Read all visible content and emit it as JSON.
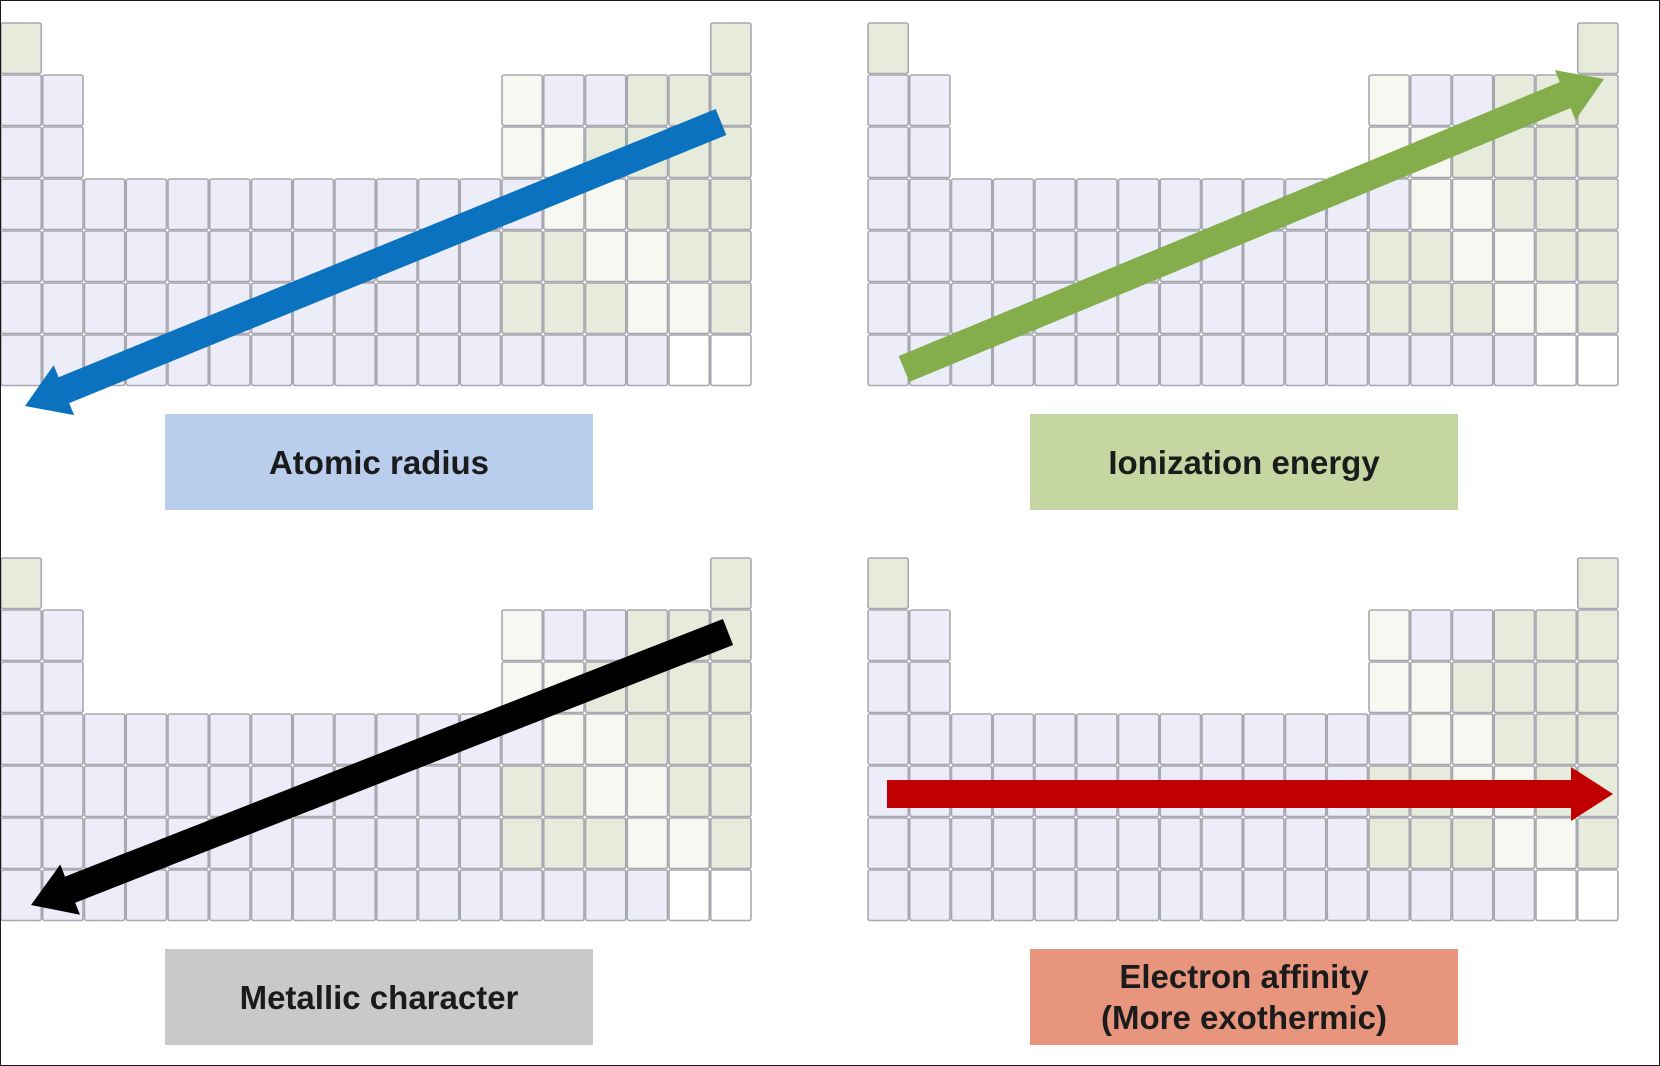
{
  "panels": [
    {
      "id": "atomic-radius",
      "label": "Atomic radius",
      "label_color": "#b9cdec",
      "arrow_color": "#0b72bf",
      "arrow_direction": "toward bottom-left"
    },
    {
      "id": "ionization-energy",
      "label": "Ionization energy",
      "label_color": "#c5d6a2",
      "arrow_color": "#84ad4c",
      "arrow_direction": "toward top-right"
    },
    {
      "id": "metallic-character",
      "label": "Metallic character",
      "label_color": "#c9c9c9",
      "arrow_color": "#000000",
      "arrow_direction": "toward bottom-left"
    },
    {
      "id": "electron-affinity",
      "label": "Electron affinity\n(More exothermic)",
      "label_color": "#e8957e",
      "arrow_color": "#c00000",
      "arrow_direction": "toward right"
    }
  ],
  "colors": {
    "metal_cell": "#ecedf9",
    "metalloid_cell": "#f7f8f2",
    "nonmetal_cell": "#e6ebdb",
    "unknown_cell": "#ffffff",
    "cell_border": "#a8a8b0"
  }
}
